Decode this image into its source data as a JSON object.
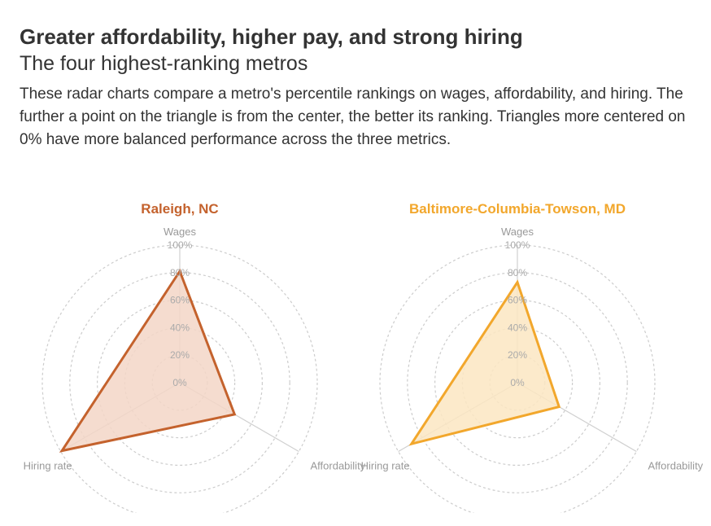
{
  "header": {
    "title": "Greater affordability, higher pay, and strong hiring",
    "subtitle": "The four highest-ranking metros",
    "description": "These radar charts compare a metro's percentile rankings on wages, affordability, and hiring. The further a point on the triangle is from the center, the better its ranking. Triangles more centered on 0% have more balanced performance across the three metrics."
  },
  "chart_data": [
    {
      "type": "radar",
      "title": "Raleigh, NC",
      "axes": [
        "Wages",
        "Affordability",
        "Hiring rate"
      ],
      "rings": [
        "0%",
        "20%",
        "40%",
        "60%",
        "80%",
        "100%"
      ],
      "range": [
        0,
        100
      ],
      "values": [
        81,
        46,
        99
      ],
      "color": "#c4622d",
      "fill": "#f3d6c7"
    },
    {
      "type": "radar",
      "title": "Baltimore-Columbia-Towson, MD",
      "axes": [
        "Wages",
        "Affordability",
        "Hiring rate"
      ],
      "rings": [
        "0%",
        "20%",
        "40%",
        "60%",
        "80%",
        "100%"
      ],
      "range": [
        0,
        100
      ],
      "values": [
        73,
        35,
        89
      ],
      "color": "#f2a72c",
      "fill": "#fbe6c2"
    }
  ]
}
